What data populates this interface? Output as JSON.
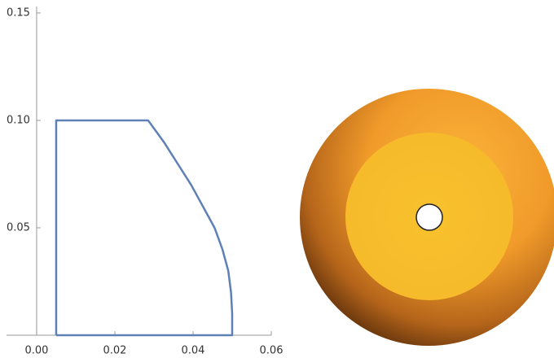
{
  "chart_data": {
    "type": "line",
    "x": [
      0.005,
      0.005,
      0.0285,
      0.0325,
      0.036,
      0.0395,
      0.0425,
      0.0455,
      0.0475,
      0.049,
      0.0497,
      0.05,
      0.05,
      0.005
    ],
    "series": [
      {
        "color": "#5e81b5",
        "values": [
          0,
          0.1,
          0.1,
          0.09,
          0.08,
          0.07,
          0.06,
          0.05,
          0.04,
          0.03,
          0.02,
          0.01,
          0,
          0
        ]
      }
    ],
    "xlim": [
      -0.0077,
      0.06
    ],
    "ylim": [
      0,
      0.153
    ],
    "xticks": [
      {
        "value": 0,
        "label": "0.00"
      },
      0.02,
      0.04,
      0.06
    ],
    "yticks": [
      0.05,
      {
        "value": 0.1,
        "label": "0.10"
      },
      0.15
    ]
  }
}
